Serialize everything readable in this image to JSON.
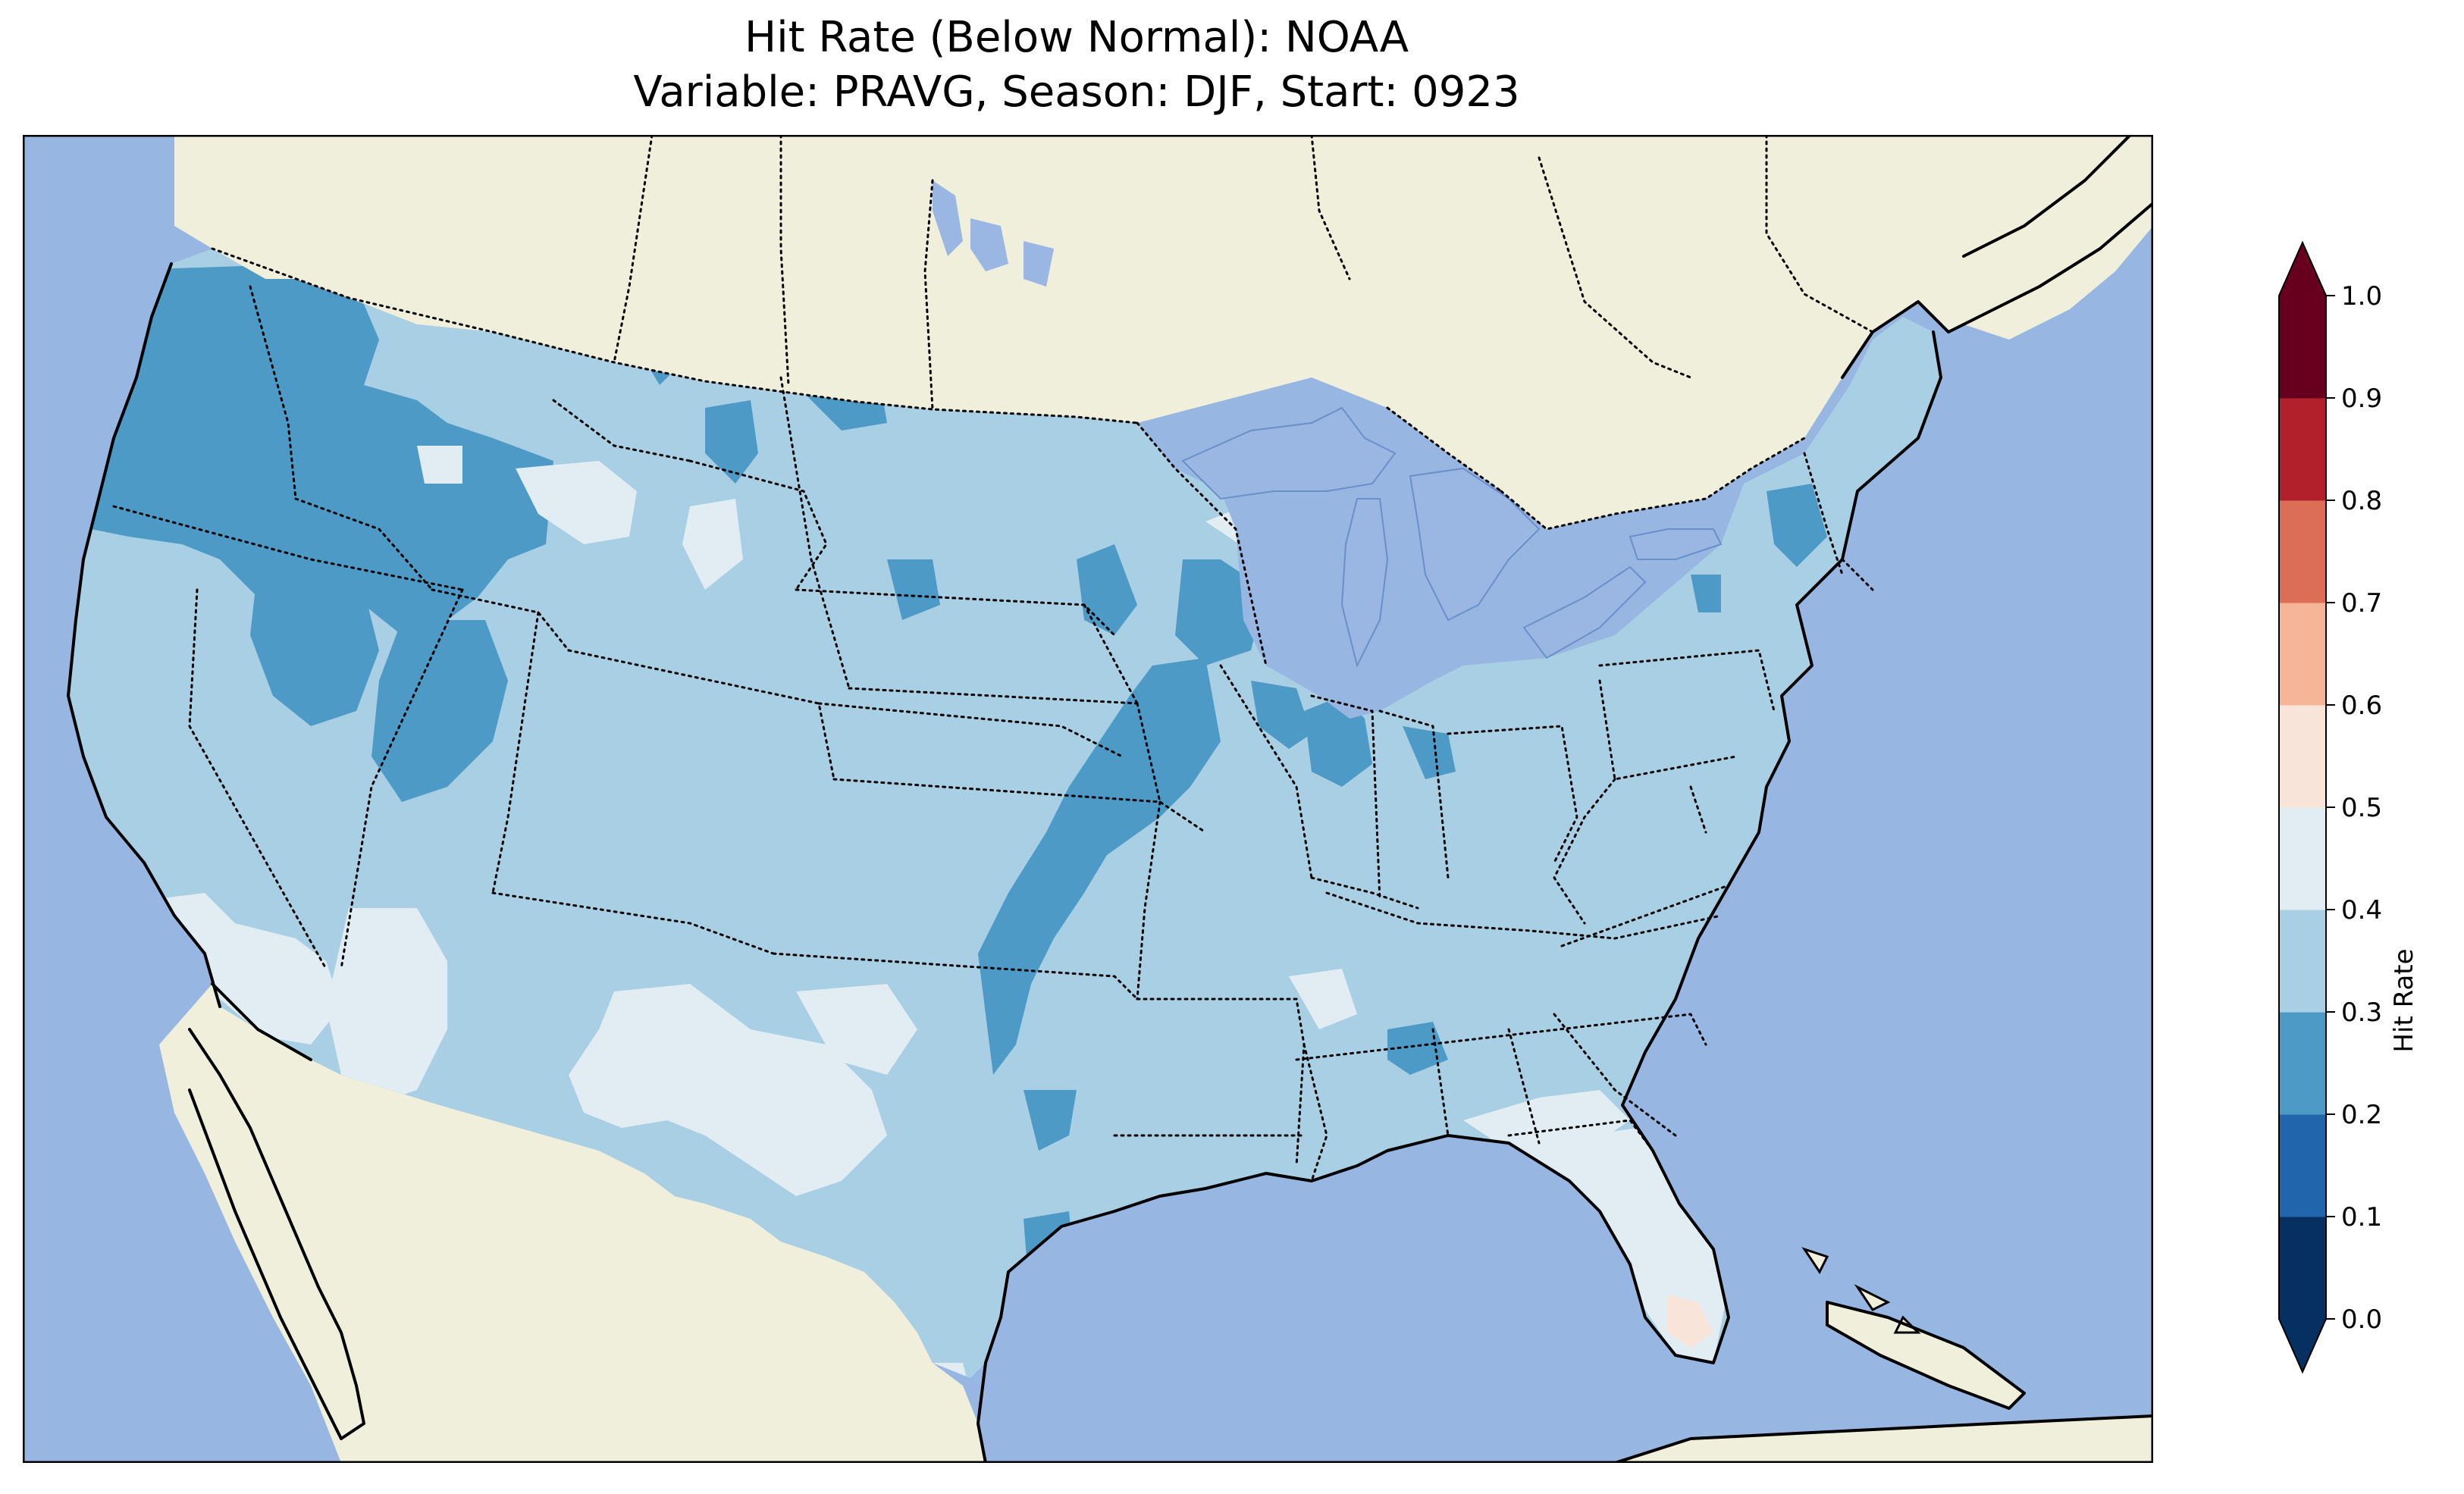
{
  "title": {
    "line1": "Hit Rate (Below Normal): NOAA",
    "line2": "Variable: PRAVG, Season: DJF, Start: 0923"
  },
  "colors": {
    "ocean": "#97b6e1",
    "land": "#efefdb",
    "lakes": "#9ab6e3",
    "data": {
      "0.0-0.1": "#053061",
      "0.1-0.2": "#2166ac",
      "0.2-0.3": "#4d9ac7",
      "0.3-0.4": "#a8cfe4",
      "0.4-0.5": "#e1ecf3",
      "0.5-0.6": "#f9e4da",
      "0.6-0.7": "#f7b598",
      "0.7-0.8": "#dc6e58",
      "0.8-0.9": "#b2202c",
      "0.9-1.0": "#67001f"
    }
  },
  "colorbar": {
    "label": "Hit Rate",
    "ticks": [
      "0.0",
      "0.1",
      "0.2",
      "0.3",
      "0.4",
      "0.5",
      "0.6",
      "0.7",
      "0.8",
      "0.9",
      "1.0"
    ],
    "extend": "both"
  },
  "map": {
    "region": "Contiguous United States",
    "projection": "Lambert Conformal",
    "boundaries": [
      "coastlines",
      "state borders (dotted)",
      "country borders (dotted)"
    ]
  }
}
